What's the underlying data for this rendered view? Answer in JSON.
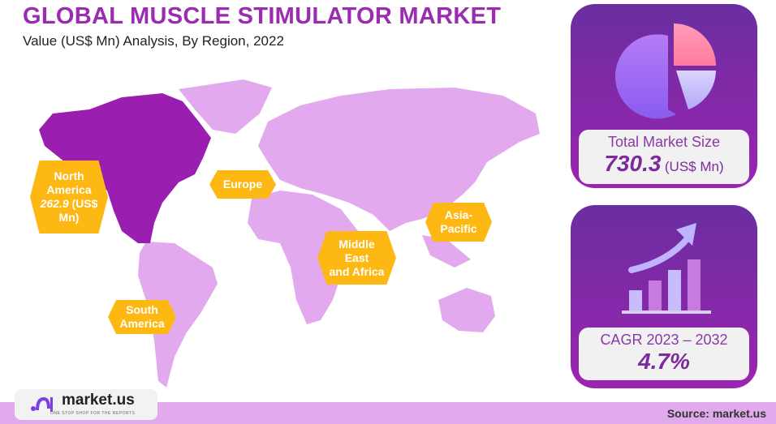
{
  "title": "GLOBAL MUSCLE STIMULATOR MARKET",
  "subtitle": "Value (US$ Mn) Analysis, By Region, 2022",
  "chart_data": {
    "type": "map",
    "regions": [
      {
        "name_lines": [
          "North",
          "America"
        ],
        "value_text": "262.9",
        "value_unit_lines": [
          "(US$",
          "Mn)"
        ],
        "value": 262.9,
        "highlighted": true
      },
      {
        "name_lines": [
          "Europe"
        ]
      },
      {
        "name_lines": [
          "Middle",
          "East",
          "and Africa"
        ]
      },
      {
        "name_lines": [
          "Asia-",
          "Pacific"
        ]
      },
      {
        "name_lines": [
          "South",
          "America"
        ]
      }
    ],
    "colors": {
      "highlight": "#9a1fb0",
      "land": "#e3a9ee",
      "label": "#fdb813"
    }
  },
  "total": {
    "label": "Total Market Size",
    "value": "730.3",
    "unit": "(US$ Mn)"
  },
  "cagr": {
    "label": "CAGR 2023 – 2032",
    "value": "4.7%"
  },
  "logo": {
    "name": "market.us",
    "tagline": "ONE STOP SHOP FOR THE REPORTS"
  },
  "source": "Source: market.us"
}
